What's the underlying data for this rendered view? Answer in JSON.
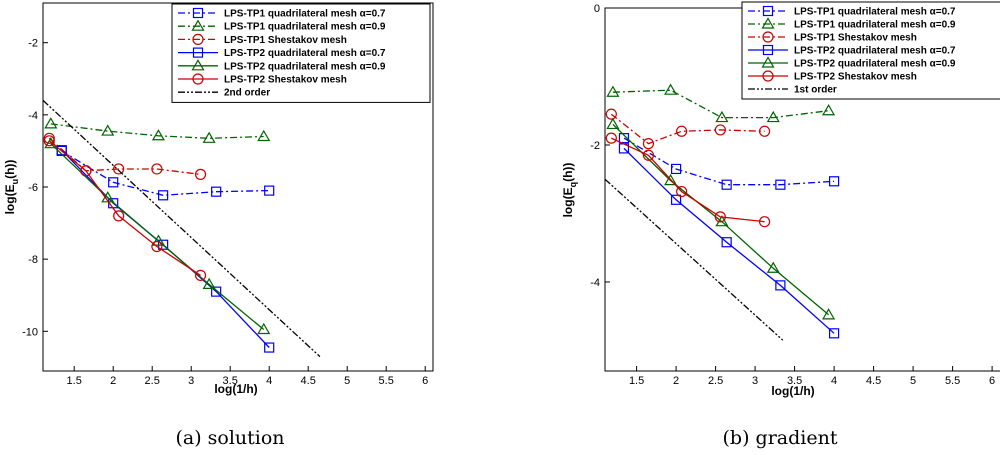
{
  "chart_data": [
    {
      "type": "line",
      "caption": "(a) solution",
      "xlabel": "log(1/h)",
      "ylabel": "log(E",
      "ylabel_sub": "u",
      "ylabel_tail": "(h))",
      "xlim": [
        1.1,
        6.1
      ],
      "ylim": [
        -11.1,
        -0.9
      ],
      "x_ticks": [
        1.5,
        2,
        2.5,
        3,
        3.5,
        4,
        4.5,
        5,
        5.5,
        6
      ],
      "x_tick_labels": [
        "1.5",
        "2",
        "2.5",
        "3",
        "3.5",
        "4",
        "4.5",
        "5",
        "5.5",
        "6"
      ],
      "y_ticks": [
        -10,
        -8,
        -6,
        -4,
        -2
      ],
      "y_tick_labels": [
        "-10",
        "-8",
        "-6",
        "-4",
        "-2"
      ],
      "legend_position": "top-right",
      "series": [
        {
          "name": "LPS-TP1 quadrilateral mesh α=0.7",
          "color": "#0000ff",
          "dash": "dashdot",
          "marker": "square",
          "x": [
            1.34,
            2.0,
            2.64,
            3.32,
            4.0
          ],
          "y": [
            -5.0,
            -5.87,
            -6.23,
            -6.13,
            -6.1
          ]
        },
        {
          "name": "LPS-TP1 quadrilateral mesh α=0.9",
          "color": "#006400",
          "dash": "dashdot",
          "marker": "triangle",
          "x": [
            1.2,
            1.93,
            2.58,
            3.23,
            3.93
          ],
          "y": [
            -4.25,
            -4.45,
            -4.58,
            -4.65,
            -4.6
          ]
        },
        {
          "name": "LPS-TP1 Shestakov mesh",
          "color": "#cc0000",
          "dash": "dashdot",
          "marker": "circle",
          "x": [
            1.18,
            1.65,
            2.07,
            2.56,
            3.12
          ],
          "y": [
            -4.65,
            -5.55,
            -5.5,
            -5.5,
            -5.65
          ]
        },
        {
          "name": "LPS-TP2 quadrilateral mesh α=0.7",
          "color": "#0000ff",
          "dash": "solid",
          "marker": "square",
          "x": [
            1.34,
            2.0,
            2.64,
            3.32,
            4.0
          ],
          "y": [
            -4.98,
            -6.45,
            -7.6,
            -8.9,
            -10.45
          ]
        },
        {
          "name": "LPS-TP2 quadrilateral mesh α=0.9",
          "color": "#006400",
          "dash": "solid",
          "marker": "triangle",
          "x": [
            1.2,
            1.93,
            2.58,
            3.23,
            3.93
          ],
          "y": [
            -4.8,
            -6.3,
            -7.5,
            -8.7,
            -9.95
          ]
        },
        {
          "name": "LPS-TP2 Shestakov mesh",
          "color": "#cc0000",
          "dash": "solid",
          "marker": "circle",
          "x": [
            1.18,
            1.65,
            2.07,
            2.56,
            3.12
          ],
          "y": [
            -4.72,
            -5.55,
            -6.8,
            -7.65,
            -8.45
          ]
        },
        {
          "name": "2nd order",
          "color": "#000000",
          "dash": "dashdotdot",
          "marker": "none",
          "x": [
            1.1,
            4.65
          ],
          "y": [
            -3.6,
            -10.7
          ]
        }
      ]
    },
    {
      "type": "line",
      "caption": "(b) gradient",
      "xlabel": "log(1/h)",
      "ylabel": "log(E",
      "ylabel_sub": "q",
      "ylabel_tail": "(h))",
      "xlim": [
        1.1,
        6.1
      ],
      "ylim": [
        -5.3,
        0
      ],
      "x_ticks": [
        1.5,
        2,
        2.5,
        3,
        3.5,
        4,
        4.5,
        5,
        5.5,
        6
      ],
      "x_tick_labels": [
        "1.5",
        "2",
        "2.5",
        "3",
        "3.5",
        "4",
        "4.5",
        "5",
        "5.5",
        "6"
      ],
      "y_ticks": [
        -4,
        -2,
        0
      ],
      "y_tick_labels": [
        "-4",
        "-2",
        "0"
      ],
      "legend_position": "top-right",
      "series": [
        {
          "name": "LPS-TP1 quadrilateral mesh α=0.7",
          "color": "#0000ff",
          "dash": "dashdot",
          "marker": "square",
          "x": [
            1.34,
            2.0,
            2.64,
            3.32,
            4.0
          ],
          "y": [
            -1.9,
            -2.35,
            -2.58,
            -2.58,
            -2.53
          ]
        },
        {
          "name": "LPS-TP1 quadrilateral mesh α=0.9",
          "color": "#006400",
          "dash": "dashdot",
          "marker": "triangle",
          "x": [
            1.2,
            1.93,
            2.58,
            3.23,
            3.93
          ],
          "y": [
            -1.23,
            -1.2,
            -1.6,
            -1.6,
            -1.5
          ]
        },
        {
          "name": "LPS-TP1 Shestakov mesh",
          "color": "#cc0000",
          "dash": "dashdot",
          "marker": "circle",
          "x": [
            1.18,
            1.65,
            2.07,
            2.56,
            3.12
          ],
          "y": [
            -1.55,
            -1.98,
            -1.8,
            -1.78,
            -1.8
          ]
        },
        {
          "name": "LPS-TP2 quadrilateral mesh α=0.7",
          "color": "#0000ff",
          "dash": "solid",
          "marker": "square",
          "x": [
            1.34,
            2.0,
            2.64,
            3.32,
            4.0
          ],
          "y": [
            -2.05,
            -2.8,
            -3.42,
            -4.05,
            -4.75
          ]
        },
        {
          "name": "LPS-TP2 quadrilateral mesh α=0.9",
          "color": "#006400",
          "dash": "solid",
          "marker": "triangle",
          "x": [
            1.2,
            1.93,
            2.58,
            3.23,
            3.93
          ],
          "y": [
            -1.7,
            -2.52,
            -3.12,
            -3.8,
            -4.48
          ]
        },
        {
          "name": "LPS-TP2 Shestakov mesh",
          "color": "#cc0000",
          "dash": "solid",
          "marker": "circle",
          "x": [
            1.18,
            1.65,
            2.07,
            2.56,
            3.12
          ],
          "y": [
            -1.9,
            -2.15,
            -2.68,
            -3.05,
            -3.12
          ]
        },
        {
          "name": "1st order",
          "color": "#000000",
          "dash": "dashdotdot",
          "marker": "none",
          "x": [
            1.1,
            3.35
          ],
          "y": [
            -2.5,
            -4.85
          ]
        }
      ]
    }
  ]
}
